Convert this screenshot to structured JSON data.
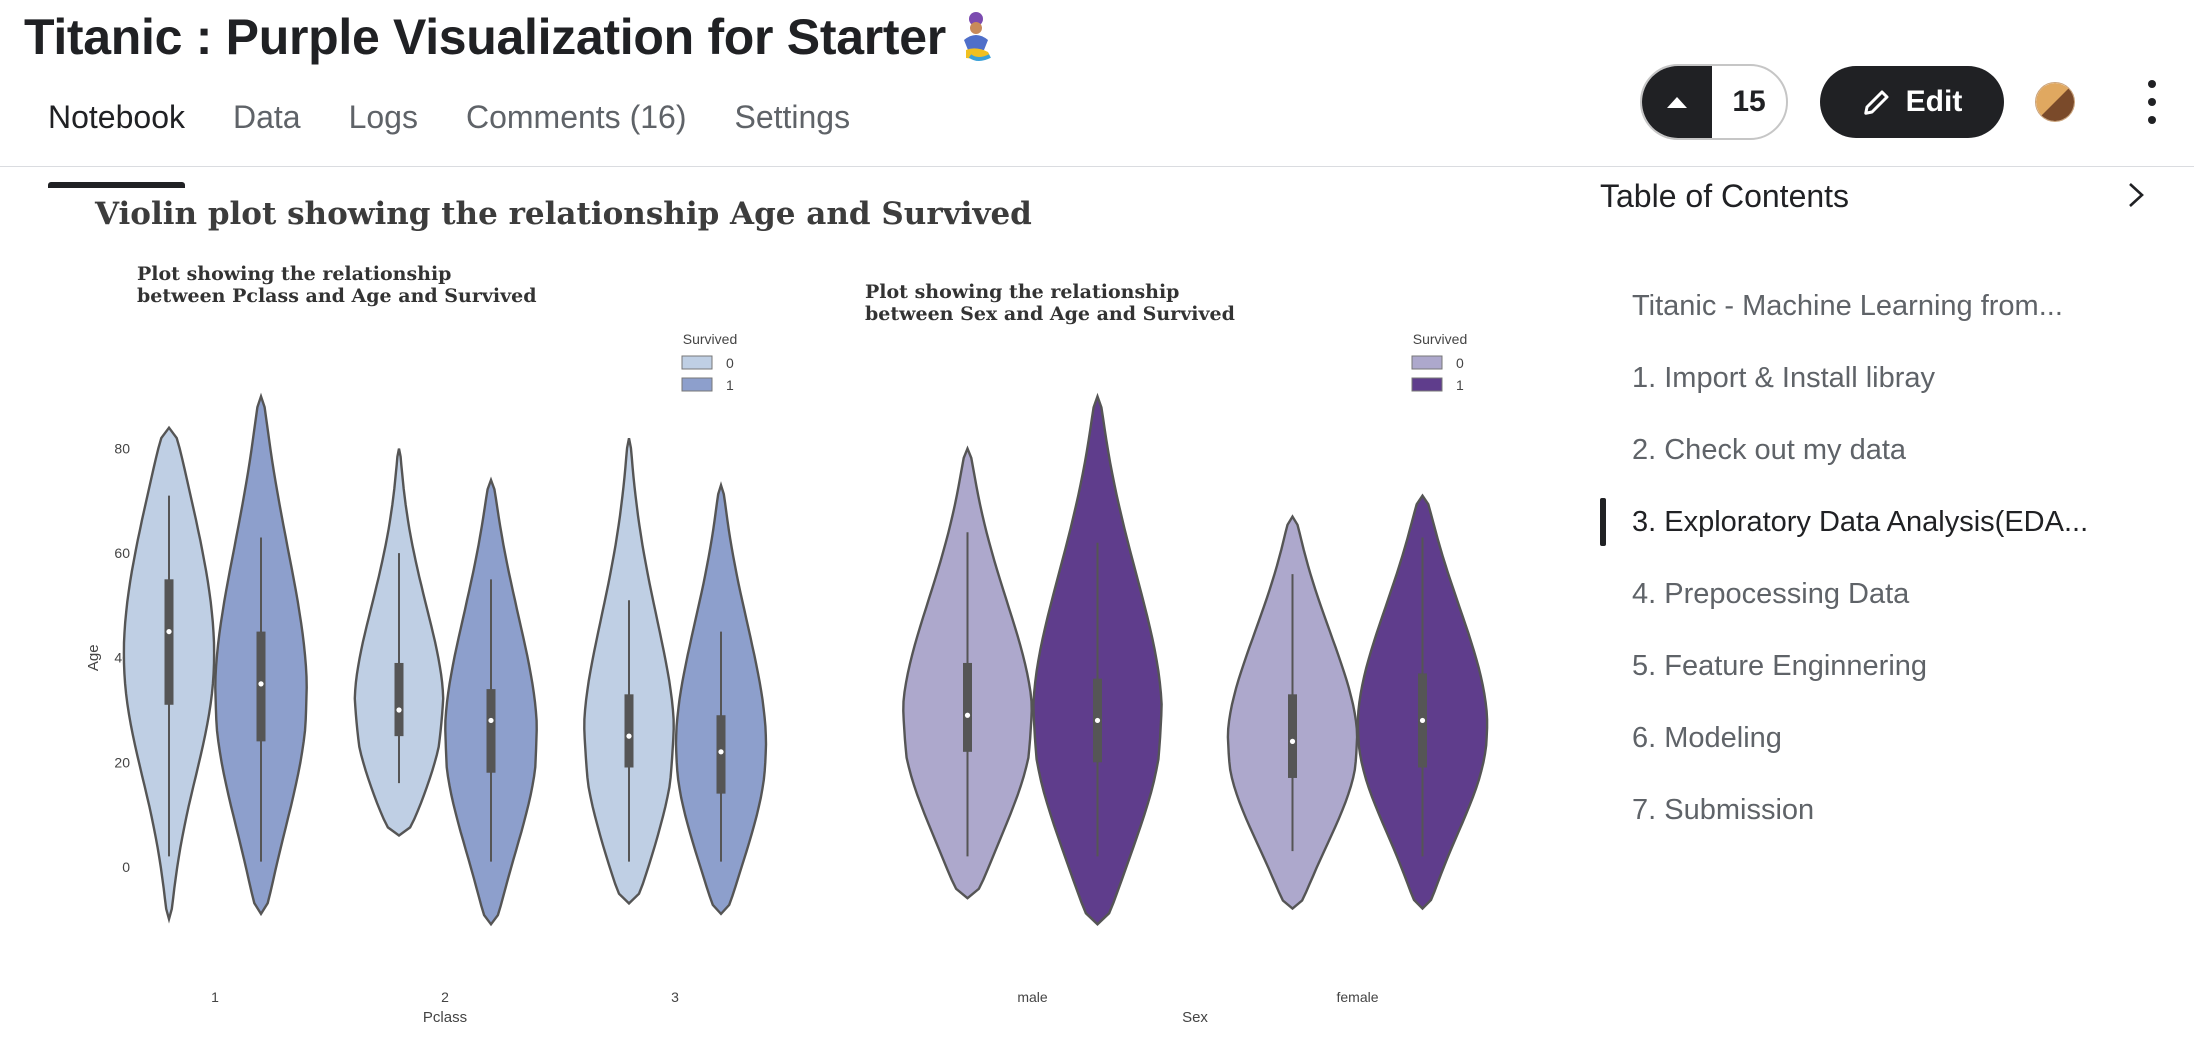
{
  "notebook": {
    "title": "Titanic : Purple Visualization for Starter"
  },
  "tabs": [
    {
      "label": "Notebook",
      "active": true
    },
    {
      "label": "Data"
    },
    {
      "label": "Logs"
    },
    {
      "label": "Comments (16)"
    },
    {
      "label": "Settings"
    }
  ],
  "header": {
    "vote_count": "15",
    "edit_label": "Edit"
  },
  "toc": {
    "title": "Table of Contents",
    "items": [
      "Titanic - Machine Learning from...",
      "1. Import & Install libray",
      "2. Check out my data",
      "3. Exploratory Data Analysis(EDA...",
      "4. Prepocessing Data",
      "5. Feature Enginnering",
      "6. Modeling",
      "7. Submission"
    ],
    "active_index": 3
  },
  "figure": {
    "title": "Violin plot showing the relationship Age and Survived"
  },
  "chart_data": [
    {
      "type": "violin",
      "title": "Plot showing the relationship\nbetween Pclass and Age and Survived",
      "xlabel": "Pclass",
      "ylabel": "Age",
      "categories": [
        "1",
        "2",
        "3"
      ],
      "yticks": [
        0,
        20,
        40,
        60,
        80
      ],
      "ylim": [
        -14,
        96
      ],
      "legend": {
        "title": "Survived",
        "entries": [
          "0",
          "1"
        ],
        "position": "top-right"
      },
      "colors": [
        "#bfcfe4",
        "#8d9fcc"
      ],
      "series": [
        {
          "name": "0",
          "violins": [
            {
              "category": "1",
              "min": -10,
              "max": 84,
              "q1": 31,
              "median": 45,
              "q3": 55,
              "whisker_low": 2,
              "whisker_high": 71,
              "mode": 47
            },
            {
              "category": "2",
              "min": 6,
              "max": 80,
              "q1": 25,
              "median": 30,
              "q3": 39,
              "whisker_low": 16,
              "whisker_high": 60,
              "mode": 29
            },
            {
              "category": "3",
              "min": -7,
              "max": 82,
              "q1": 19,
              "median": 25,
              "q3": 33,
              "whisker_low": 1,
              "whisker_high": 51,
              "mode": 23
            }
          ]
        },
        {
          "name": "1",
          "violins": [
            {
              "category": "1",
              "min": -9,
              "max": 90,
              "q1": 24,
              "median": 35,
              "q3": 45,
              "whisker_low": 1,
              "whisker_high": 63,
              "mode": 35
            },
            {
              "category": "2",
              "min": -11,
              "max": 74,
              "q1": 18,
              "median": 28,
              "q3": 34,
              "whisker_low": 1,
              "whisker_high": 55,
              "mode": 26
            },
            {
              "category": "3",
              "min": -9,
              "max": 73,
              "q1": 14,
              "median": 22,
              "q3": 29,
              "whisker_low": 1,
              "whisker_high": 45,
              "mode": 24
            }
          ]
        }
      ]
    },
    {
      "type": "violin",
      "title": "Plot showing the relationship\nbetween Sex and Age and Survived",
      "xlabel": "Sex",
      "ylabel": "",
      "categories": [
        "male",
        "female"
      ],
      "ylim": [
        -14,
        96
      ],
      "legend": {
        "title": "Survived",
        "entries": [
          "0",
          "1"
        ],
        "position": "top-right"
      },
      "colors": [
        "#ada8cc",
        "#5f3d8c"
      ],
      "series": [
        {
          "name": "0",
          "violins": [
            {
              "category": "male",
              "min": -6,
              "max": 80,
              "q1": 22,
              "median": 29,
              "q3": 39,
              "whisker_low": 2,
              "whisker_high": 64,
              "mode": 28
            },
            {
              "category": "female",
              "min": -8,
              "max": 67,
              "q1": 17,
              "median": 24,
              "q3": 33,
              "whisker_low": 3,
              "whisker_high": 56,
              "mode": 25
            }
          ]
        },
        {
          "name": "1",
          "violins": [
            {
              "category": "male",
              "min": -11,
              "max": 90,
              "q1": 20,
              "median": 28,
              "q3": 36,
              "whisker_low": 2,
              "whisker_high": 62,
              "mode": 29
            },
            {
              "category": "female",
              "min": -8,
              "max": 71,
              "q1": 19,
              "median": 28,
              "q3": 37,
              "whisker_low": 2,
              "whisker_high": 63,
              "mode": 29
            }
          ]
        }
      ]
    }
  ]
}
